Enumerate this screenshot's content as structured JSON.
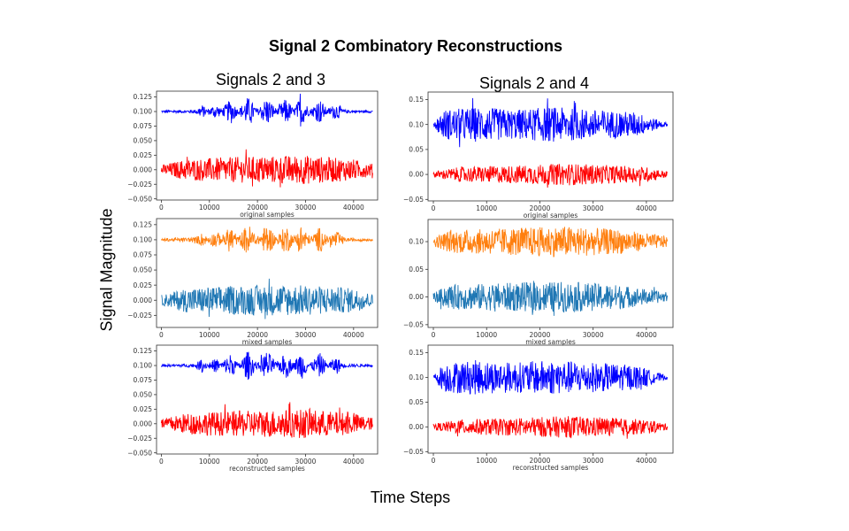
{
  "figure": {
    "title": "Signal 2 Combinatory Reconstructions",
    "xlabel": "Time Steps",
    "ylabel": "Signal Magnitude",
    "column_titles": [
      "Signals 2 and 3",
      "Signals 2 and 4"
    ]
  },
  "colors": {
    "blue": "#0000ff",
    "red": "#ff0000",
    "orange": "#ff7f0e",
    "steelblue": "#1f77b4",
    "axis": "#333333"
  },
  "chart_data": [
    {
      "type": "line",
      "column": 0,
      "row": 0,
      "xlabel": "original samples",
      "xlim": [
        -1000,
        45000
      ],
      "ylim": [
        -0.052,
        0.135
      ],
      "xticks": [
        0,
        10000,
        20000,
        30000,
        40000
      ],
      "yticks": [
        -0.05,
        -0.025,
        0.0,
        0.025,
        0.05,
        0.075,
        0.1,
        0.125
      ],
      "ytick_labels": [
        "−0.050",
        "−0.025",
        "0.000",
        "0.025",
        "0.050",
        "0.075",
        "0.100",
        "0.125"
      ],
      "series": [
        {
          "color": "blue",
          "offset": 0.1,
          "x_range": [
            0,
            44000
          ],
          "amp_envelope": [
            [
              0,
              0.002
            ],
            [
              7000,
              0.003
            ],
            [
              8500,
              0.012
            ],
            [
              9500,
              0.004
            ],
            [
              11500,
              0.013
            ],
            [
              12500,
              0.005
            ],
            [
              14500,
              0.022
            ],
            [
              16000,
              0.003
            ],
            [
              18000,
              0.026
            ],
            [
              20000,
              0.004
            ],
            [
              22000,
              0.026
            ],
            [
              24000,
              0.004
            ],
            [
              26000,
              0.024
            ],
            [
              27500,
              0.004
            ],
            [
              29000,
              0.026
            ],
            [
              31000,
              0.004
            ],
            [
              33000,
              0.022
            ],
            [
              34500,
              0.004
            ],
            [
              36500,
              0.015
            ],
            [
              38000,
              0.003
            ],
            [
              44000,
              0.002
            ]
          ]
        },
        {
          "color": "red",
          "offset": 0.0,
          "x_range": [
            0,
            44000
          ],
          "amp_envelope": [
            [
              0,
              0.008
            ],
            [
              5000,
              0.018
            ],
            [
              15000,
              0.022
            ],
            [
              25000,
              0.024
            ],
            [
              30000,
              0.025
            ],
            [
              40000,
              0.018
            ],
            [
              44000,
              0.01
            ]
          ]
        }
      ]
    },
    {
      "type": "line",
      "column": 1,
      "row": 0,
      "xlabel": "original samples",
      "xlim": [
        -1000,
        45000
      ],
      "ylim": [
        -0.053,
        0.165
      ],
      "xticks": [
        0,
        10000,
        20000,
        30000,
        40000
      ],
      "yticks": [
        -0.05,
        0.0,
        0.05,
        0.1,
        0.15
      ],
      "ytick_labels": [
        "−0.05",
        "0.00",
        "0.05",
        "0.10",
        "0.15"
      ],
      "series": [
        {
          "color": "blue",
          "offset": 0.1,
          "x_range": [
            0,
            44000
          ],
          "amp_envelope": [
            [
              0,
              0.004
            ],
            [
              2000,
              0.03
            ],
            [
              8000,
              0.035
            ],
            [
              15000,
              0.03
            ],
            [
              22000,
              0.035
            ],
            [
              30000,
              0.03
            ],
            [
              38000,
              0.025
            ],
            [
              42000,
              0.01
            ],
            [
              44000,
              0.003
            ]
          ]
        },
        {
          "color": "red",
          "offset": 0.0,
          "x_range": [
            0,
            44000
          ],
          "amp_envelope": [
            [
              0,
              0.006
            ],
            [
              5000,
              0.015
            ],
            [
              15000,
              0.018
            ],
            [
              25000,
              0.022
            ],
            [
              30000,
              0.02
            ],
            [
              40000,
              0.015
            ],
            [
              44000,
              0.006
            ]
          ]
        }
      ]
    },
    {
      "type": "line",
      "column": 0,
      "row": 1,
      "xlabel": "mixed samples",
      "xlim": [
        -1000,
        45000
      ],
      "ylim": [
        -0.045,
        0.135
      ],
      "xticks": [
        0,
        10000,
        20000,
        30000,
        40000
      ],
      "yticks": [
        -0.025,
        0.0,
        0.025,
        0.05,
        0.075,
        0.1,
        0.125
      ],
      "ytick_labels": [
        "−0.025",
        "0.000",
        "0.025",
        "0.050",
        "0.075",
        "0.100",
        "0.125"
      ],
      "series": [
        {
          "color": "orange",
          "offset": 0.1,
          "x_range": [
            0,
            44000
          ],
          "amp_envelope": [
            [
              0,
              0.002
            ],
            [
              7000,
              0.004
            ],
            [
              8500,
              0.012
            ],
            [
              9500,
              0.005
            ],
            [
              11500,
              0.015
            ],
            [
              12500,
              0.006
            ],
            [
              14500,
              0.024
            ],
            [
              16000,
              0.004
            ],
            [
              18000,
              0.028
            ],
            [
              20000,
              0.005
            ],
            [
              22000,
              0.027
            ],
            [
              24000,
              0.005
            ],
            [
              26000,
              0.025
            ],
            [
              27500,
              0.005
            ],
            [
              29000,
              0.026
            ],
            [
              31000,
              0.005
            ],
            [
              33000,
              0.022
            ],
            [
              34500,
              0.005
            ],
            [
              36500,
              0.015
            ],
            [
              38000,
              0.003
            ],
            [
              44000,
              0.002
            ]
          ]
        },
        {
          "color": "steelblue",
          "offset": 0.0,
          "x_range": [
            0,
            44000
          ],
          "amp_envelope": [
            [
              0,
              0.008
            ],
            [
              5000,
              0.02
            ],
            [
              15000,
              0.024
            ],
            [
              25000,
              0.026
            ],
            [
              30000,
              0.025
            ],
            [
              40000,
              0.02
            ],
            [
              44000,
              0.01
            ]
          ]
        }
      ]
    },
    {
      "type": "line",
      "column": 1,
      "row": 1,
      "xlabel": "mixed samples",
      "xlim": [
        -1000,
        45000
      ],
      "ylim": [
        -0.055,
        0.14
      ],
      "xticks": [
        0,
        10000,
        20000,
        30000,
        40000
      ],
      "yticks": [
        -0.05,
        0.0,
        0.05,
        0.1
      ],
      "ytick_labels": [
        "−0.05",
        "0.00",
        "0.05",
        "0.10"
      ],
      "series": [
        {
          "color": "orange",
          "offset": 0.1,
          "x_range": [
            0,
            44000
          ],
          "amp_envelope": [
            [
              0,
              0.008
            ],
            [
              3000,
              0.02
            ],
            [
              15000,
              0.025
            ],
            [
              25000,
              0.028
            ],
            [
              35000,
              0.022
            ],
            [
              44000,
              0.01
            ]
          ]
        },
        {
          "color": "steelblue",
          "offset": 0.0,
          "x_range": [
            0,
            44000
          ],
          "amp_envelope": [
            [
              0,
              0.008
            ],
            [
              3000,
              0.022
            ],
            [
              15000,
              0.026
            ],
            [
              25000,
              0.028
            ],
            [
              35000,
              0.022
            ],
            [
              44000,
              0.008
            ]
          ]
        }
      ]
    },
    {
      "type": "line",
      "column": 0,
      "row": 2,
      "xlabel": "reconstructed samples",
      "xlim": [
        -1000,
        45000
      ],
      "ylim": [
        -0.052,
        0.135
      ],
      "xticks": [
        0,
        10000,
        20000,
        30000,
        40000
      ],
      "yticks": [
        -0.05,
        -0.025,
        0.0,
        0.025,
        0.05,
        0.075,
        0.1,
        0.125
      ],
      "ytick_labels": [
        "−0.050",
        "−0.025",
        "0.000",
        "0.025",
        "0.050",
        "0.075",
        "0.100",
        "0.125"
      ],
      "series": [
        {
          "color": "blue",
          "offset": 0.1,
          "x_range": [
            0,
            44000
          ],
          "amp_envelope": [
            [
              0,
              0.002
            ],
            [
              7000,
              0.003
            ],
            [
              8500,
              0.012
            ],
            [
              9500,
              0.004
            ],
            [
              11500,
              0.013
            ],
            [
              12500,
              0.005
            ],
            [
              14500,
              0.022
            ],
            [
              16000,
              0.003
            ],
            [
              18000,
              0.026
            ],
            [
              20000,
              0.004
            ],
            [
              22000,
              0.026
            ],
            [
              24000,
              0.004
            ],
            [
              26000,
              0.024
            ],
            [
              27500,
              0.004
            ],
            [
              29000,
              0.026
            ],
            [
              31000,
              0.004
            ],
            [
              33000,
              0.022
            ],
            [
              34500,
              0.004
            ],
            [
              36500,
              0.015
            ],
            [
              38000,
              0.003
            ],
            [
              44000,
              0.002
            ]
          ]
        },
        {
          "color": "red",
          "offset": 0.0,
          "x_range": [
            0,
            44000
          ],
          "amp_envelope": [
            [
              0,
              0.008
            ],
            [
              5000,
              0.018
            ],
            [
              15000,
              0.022
            ],
            [
              25000,
              0.024
            ],
            [
              30000,
              0.025
            ],
            [
              40000,
              0.018
            ],
            [
              44000,
              0.01
            ]
          ]
        }
      ]
    },
    {
      "type": "line",
      "column": 1,
      "row": 2,
      "xlabel": "reconstructed samples",
      "xlim": [
        -1000,
        45000
      ],
      "ylim": [
        -0.053,
        0.165
      ],
      "xticks": [
        0,
        10000,
        20000,
        30000,
        40000
      ],
      "yticks": [
        -0.05,
        0.0,
        0.05,
        0.1,
        0.15
      ],
      "ytick_labels": [
        "−0.05",
        "0.00",
        "0.05",
        "0.10",
        "0.15"
      ],
      "series": [
        {
          "color": "blue",
          "offset": 0.1,
          "x_range": [
            0,
            44000
          ],
          "amp_envelope": [
            [
              0,
              0.004
            ],
            [
              2000,
              0.03
            ],
            [
              8000,
              0.035
            ],
            [
              15000,
              0.03
            ],
            [
              22000,
              0.035
            ],
            [
              30000,
              0.03
            ],
            [
              38000,
              0.025
            ],
            [
              42000,
              0.01
            ],
            [
              44000,
              0.003
            ]
          ]
        },
        {
          "color": "red",
          "offset": 0.0,
          "x_range": [
            0,
            44000
          ],
          "amp_envelope": [
            [
              0,
              0.006
            ],
            [
              5000,
              0.015
            ],
            [
              15000,
              0.018
            ],
            [
              25000,
              0.022
            ],
            [
              30000,
              0.02
            ],
            [
              40000,
              0.015
            ],
            [
              44000,
              0.006
            ]
          ]
        }
      ]
    }
  ]
}
